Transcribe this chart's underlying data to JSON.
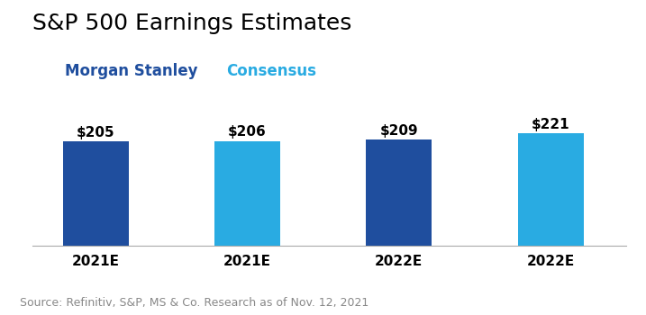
{
  "title": "S&P 500 Earnings Estimates",
  "categories": [
    "2021E",
    "2021E",
    "2022E",
    "2022E"
  ],
  "values": [
    205,
    206,
    209,
    221
  ],
  "labels": [
    "$205",
    "$206",
    "$209",
    "$221"
  ],
  "bar_colors": [
    "#1f4e9e",
    "#29abe2",
    "#1f4e9e",
    "#29abe2"
  ],
  "legend_labels": [
    "Morgan Stanley",
    "Consensus"
  ],
  "legend_colors": [
    "#1f4e9e",
    "#29abe2"
  ],
  "ylim": [
    0,
    310
  ],
  "source_text": "Source: Refinitiv, S&P, MS & Co. Research as of Nov. 12, 2021",
  "background_color": "#ffffff",
  "title_fontsize": 18,
  "label_fontsize": 11,
  "tick_fontsize": 11,
  "source_fontsize": 9,
  "bar_width": 0.52,
  "legend_fontsize": 12
}
